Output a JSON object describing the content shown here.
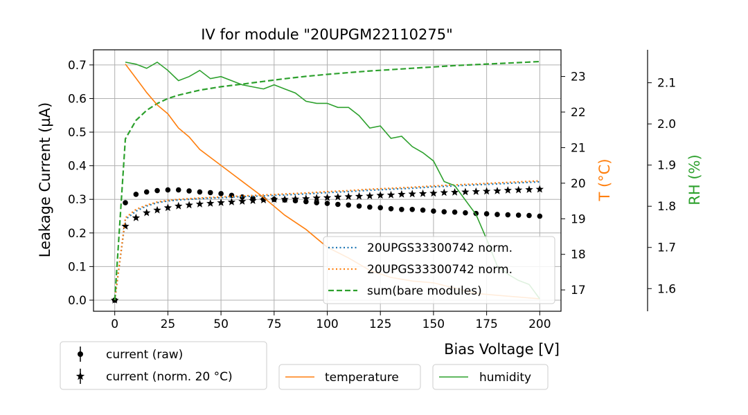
{
  "chart_data": {
    "type": "line",
    "title": "IV for module \"20UPGM22110275\"",
    "xlabel": "Bias Voltage [V]",
    "ylabel": "Leakage Current (µA)",
    "y2label": "T ($^\\circ$C)",
    "y2label_display": "T (°C)",
    "y3label": "RH (%)",
    "xlim": [
      -10,
      210
    ],
    "ylim": [
      -0.033,
      0.745
    ],
    "y2lim": [
      16.4,
      23.75
    ],
    "y3lim": [
      1.545,
      2.18
    ],
    "xticks": [
      0,
      25,
      50,
      75,
      100,
      125,
      150,
      175,
      200
    ],
    "yticks": [
      0.0,
      0.1,
      0.2,
      0.3,
      0.4,
      0.5,
      0.6,
      0.7
    ],
    "y2ticks": [
      17,
      18,
      19,
      20,
      21,
      22,
      23
    ],
    "y3ticks": [
      1.6,
      1.7,
      1.8,
      1.9,
      2.0,
      2.1
    ],
    "grid": true,
    "colors": {
      "black": "#000000",
      "blue": "#1f77b4",
      "orange": "#ff7f0e",
      "green": "#2ca02c"
    },
    "series": [
      {
        "name": "current (raw)",
        "kind": "scatter",
        "marker": "dot",
        "axis": "left",
        "color": "#000000",
        "x": [
          0,
          5,
          10,
          15,
          20,
          25,
          30,
          35,
          40,
          45,
          50,
          55,
          60,
          65,
          70,
          75,
          80,
          85,
          90,
          95,
          100,
          105,
          110,
          115,
          120,
          125,
          130,
          135,
          140,
          145,
          150,
          155,
          160,
          165,
          170,
          175,
          180,
          185,
          190,
          195,
          200
        ],
        "values": [
          0.0,
          0.29,
          0.315,
          0.322,
          0.326,
          0.328,
          0.328,
          0.325,
          0.322,
          0.32,
          0.317,
          0.312,
          0.307,
          0.303,
          0.3,
          0.3,
          0.298,
          0.296,
          0.293,
          0.29,
          0.288,
          0.285,
          0.283,
          0.28,
          0.277,
          0.275,
          0.272,
          0.27,
          0.27,
          0.268,
          0.265,
          0.263,
          0.262,
          0.26,
          0.258,
          0.257,
          0.255,
          0.254,
          0.253,
          0.252,
          0.25
        ]
      },
      {
        "name": "current (norm. 20$^\\circ$C)",
        "display_name": "current (norm. 20 °C)",
        "kind": "scatter",
        "marker": "star",
        "axis": "left",
        "color": "#000000",
        "x": [
          0,
          5,
          10,
          15,
          20,
          25,
          30,
          35,
          40,
          45,
          50,
          55,
          60,
          65,
          70,
          75,
          80,
          85,
          90,
          95,
          100,
          105,
          110,
          115,
          120,
          125,
          130,
          135,
          140,
          145,
          150,
          155,
          160,
          165,
          170,
          175,
          180,
          185,
          190,
          195,
          200
        ],
        "values": [
          0.0,
          0.22,
          0.245,
          0.26,
          0.268,
          0.275,
          0.28,
          0.283,
          0.286,
          0.288,
          0.29,
          0.292,
          0.294,
          0.296,
          0.298,
          0.3,
          0.3,
          0.301,
          0.302,
          0.304,
          0.305,
          0.307,
          0.308,
          0.309,
          0.31,
          0.312,
          0.313,
          0.315,
          0.316,
          0.317,
          0.318,
          0.32,
          0.321,
          0.322,
          0.323,
          0.324,
          0.325,
          0.327,
          0.328,
          0.329,
          0.33
        ]
      },
      {
        "name": "20UPGS33300742 norm.",
        "kind": "line",
        "style": "dotted",
        "axis": "left",
        "color": "#1f77b4",
        "x": [
          0,
          5,
          10,
          15,
          20,
          25,
          30,
          40,
          50,
          60,
          70,
          80,
          90,
          100,
          110,
          120,
          130,
          140,
          150,
          160,
          170,
          180,
          190,
          200
        ],
        "values": [
          0.0,
          0.24,
          0.265,
          0.28,
          0.29,
          0.295,
          0.298,
          0.302,
          0.305,
          0.308,
          0.31,
          0.313,
          0.316,
          0.32,
          0.323,
          0.327,
          0.33,
          0.333,
          0.337,
          0.34,
          0.343,
          0.346,
          0.349,
          0.352
        ]
      },
      {
        "name": "20UPGS33300742 norm.",
        "kind": "line",
        "style": "dotted",
        "axis": "left",
        "color": "#ff7f0e",
        "x": [
          0,
          5,
          10,
          15,
          20,
          25,
          30,
          40,
          50,
          60,
          70,
          80,
          90,
          100,
          110,
          120,
          130,
          140,
          150,
          160,
          170,
          180,
          190,
          200
        ],
        "values": [
          0.0,
          0.245,
          0.27,
          0.283,
          0.292,
          0.297,
          0.3,
          0.304,
          0.307,
          0.31,
          0.313,
          0.316,
          0.319,
          0.323,
          0.326,
          0.33,
          0.333,
          0.336,
          0.34,
          0.343,
          0.346,
          0.349,
          0.352,
          0.355
        ]
      },
      {
        "name": "sum(bare modules)",
        "kind": "line",
        "style": "dashed",
        "axis": "left",
        "color": "#2ca02c",
        "x": [
          0,
          5,
          10,
          15,
          20,
          25,
          30,
          40,
          50,
          60,
          70,
          80,
          90,
          100,
          110,
          120,
          130,
          140,
          150,
          160,
          170,
          180,
          190,
          200
        ],
        "values": [
          0.0,
          0.48,
          0.535,
          0.565,
          0.585,
          0.6,
          0.61,
          0.625,
          0.635,
          0.643,
          0.651,
          0.659,
          0.666,
          0.672,
          0.677,
          0.682,
          0.686,
          0.69,
          0.694,
          0.698,
          0.701,
          0.704,
          0.707,
          0.71
        ]
      },
      {
        "name": "temperature",
        "kind": "line",
        "style": "solid",
        "axis": "right",
        "color": "#ff7f0e",
        "x": [
          5,
          10,
          15,
          20,
          25,
          30,
          35,
          40,
          50,
          60,
          70,
          80,
          90,
          100,
          110,
          120,
          130,
          140,
          150,
          160,
          170,
          180,
          190,
          200
        ],
        "values": [
          23.35,
          22.95,
          22.55,
          22.2,
          21.95,
          21.55,
          21.3,
          20.95,
          20.5,
          20.05,
          19.6,
          19.1,
          18.7,
          18.2,
          17.9,
          17.55,
          17.35,
          17.25,
          17.2,
          17.05,
          16.9,
          16.85,
          16.8,
          16.75
        ]
      },
      {
        "name": "humidity",
        "kind": "line",
        "style": "solid",
        "axis": "right2",
        "color": "#2ca02c",
        "x": [
          5,
          10,
          15,
          20,
          25,
          30,
          35,
          40,
          45,
          50,
          55,
          60,
          65,
          70,
          75,
          80,
          85,
          90,
          95,
          100,
          105,
          110,
          115,
          120,
          125,
          130,
          135,
          140,
          145,
          150,
          155,
          160,
          165,
          170,
          175,
          180,
          185,
          190,
          195,
          200
        ],
        "values": [
          2.15,
          2.145,
          2.135,
          2.15,
          2.13,
          2.105,
          2.115,
          2.13,
          2.11,
          2.115,
          2.105,
          2.095,
          2.09,
          2.085,
          2.095,
          2.085,
          2.075,
          2.055,
          2.05,
          2.05,
          2.04,
          2.04,
          2.02,
          1.99,
          1.995,
          1.965,
          1.97,
          1.945,
          1.93,
          1.91,
          1.86,
          1.85,
          1.815,
          1.78,
          1.72,
          1.655,
          1.635,
          1.62,
          1.61,
          1.575
        ]
      }
    ],
    "legends": {
      "upper_right": [
        "20UPGS33300742 norm.",
        "20UPGS33300742 norm.",
        "sum(bare modules)"
      ],
      "markers": [
        "current (raw)",
        "current (norm. 20 °C)"
      ],
      "temperature": "temperature",
      "humidity": "humidity"
    }
  }
}
